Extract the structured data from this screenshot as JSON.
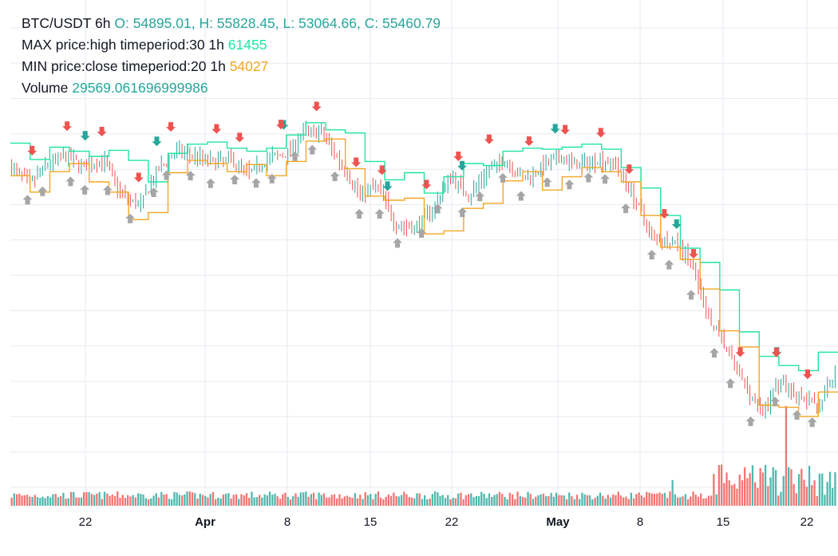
{
  "legend": {
    "symbol": "BTC/USDT 6h",
    "ohlc": "O: 54895.01, H: 55828.45, L: 53064.66, C: 55460.79",
    "max_label": "MAX price:high timeperiod:30 1h",
    "max_value": "61455",
    "min_label": "MIN price:close timeperiod:20 1h",
    "min_value": "54027",
    "volume_label": "Volume",
    "volume_value": "29569.061696999986"
  },
  "colors": {
    "up": "#26a69a",
    "down": "#ef5350",
    "max_line": "#1ee6a0",
    "min_line": "#f5a623",
    "neutral_marker": "#a6a6a6",
    "grid": "#e6eaf0"
  },
  "chart_data": {
    "type": "candlestick",
    "title": "BTC/USDT 6h",
    "x_ticks": [
      {
        "label": "22",
        "bold": false
      },
      {
        "label": "Apr",
        "bold": true
      },
      {
        "label": "8",
        "bold": false
      },
      {
        "label": "15",
        "bold": false
      },
      {
        "label": "22",
        "bold": false
      },
      {
        "label": "May",
        "bold": true
      },
      {
        "label": "8",
        "bold": false
      },
      {
        "label": "15",
        "bold": false
      },
      {
        "label": "22",
        "bold": false
      }
    ],
    "close_anchors": [
      57800,
      56200,
      58200,
      58900,
      57800,
      58600,
      55200,
      54000,
      57500,
      59400,
      59000,
      58300,
      58600,
      57200,
      58700,
      59100,
      61400,
      61100,
      58200,
      55200,
      56000,
      52200,
      51800,
      53800,
      57000,
      55000,
      57500,
      58500,
      56600,
      57900,
      58700,
      58000,
      58600,
      58200,
      54900,
      51000,
      50600,
      48900,
      43500,
      40200,
      36800,
      33800,
      37000,
      35200,
      34400,
      37500
    ],
    "max_line_anchors": [
      60200,
      58600,
      59800,
      59400,
      58900,
      59500,
      58500,
      56400,
      59200,
      60100,
      60300,
      59700,
      59400,
      59700,
      61000,
      62200,
      61500,
      61200,
      58400,
      56600,
      57300,
      55300,
      56900,
      58200,
      58000,
      59400,
      59700,
      59600,
      59800,
      60100,
      59600,
      57800,
      55800,
      53100,
      49900,
      48500,
      45800,
      41700,
      39300,
      38400,
      37900,
      39700
    ],
    "min_line_anchors": [
      57000,
      55400,
      57400,
      58200,
      56400,
      55400,
      52700,
      53400,
      57300,
      58500,
      58200,
      57400,
      58100,
      57000,
      58400,
      60400,
      60600,
      57700,
      55000,
      54600,
      54800,
      51300,
      51600,
      53800,
      54300,
      56500,
      57400,
      55600,
      56900,
      57800,
      57400,
      56400,
      53100,
      50000,
      48800,
      45900,
      41800,
      40200,
      34500,
      34300,
      33400,
      35800
    ],
    "markers": [
      {
        "kind": "buy",
        "color": "teal",
        "count": 8
      },
      {
        "kind": "sell",
        "color": "red",
        "count": 23
      },
      {
        "kind": "neutral-up",
        "color": "grey",
        "count": 39
      }
    ]
  }
}
